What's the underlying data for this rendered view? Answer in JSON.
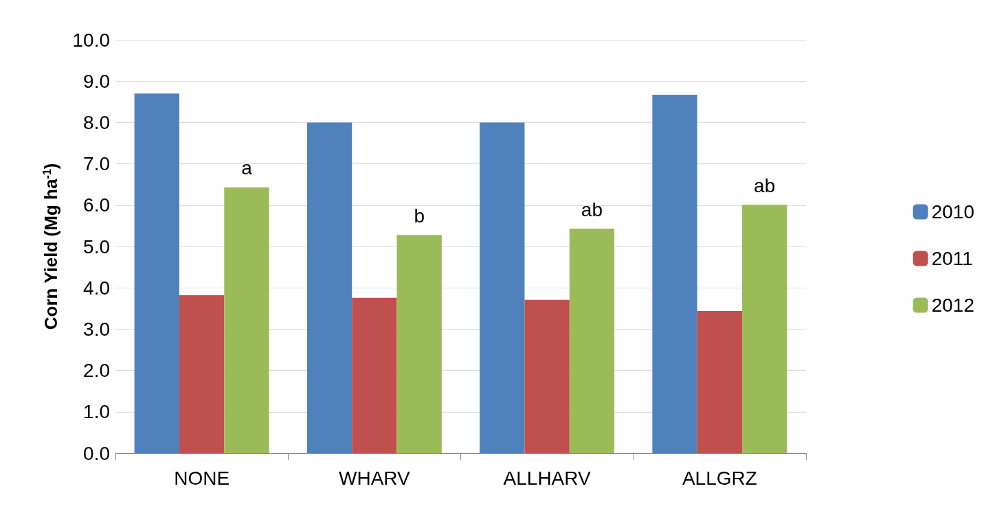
{
  "chart_data": {
    "type": "bar",
    "ylabel": "Corn Yield (Mg ha$^{-1}$)",
    "categories": [
      "NONE",
      "WHARV",
      "ALLHARV",
      "ALLGRZ"
    ],
    "series": [
      {
        "name": "2010",
        "color": "#4f81bd",
        "values": [
          8.7,
          8.0,
          8.0,
          8.67
        ]
      },
      {
        "name": "2011",
        "color": "#c0504d",
        "values": [
          3.82,
          3.76,
          3.71,
          3.44
        ]
      },
      {
        "name": "2012",
        "color": "#9bbb59",
        "values": [
          6.43,
          5.28,
          5.43,
          6.01
        ]
      }
    ],
    "annotations": [
      "a",
      "b",
      "ab",
      "ab"
    ],
    "ylim": [
      0,
      10
    ],
    "yticks": [
      {
        "value": 0,
        "label": "0.0"
      },
      {
        "value": 1,
        "label": "1.0"
      },
      {
        "value": 2,
        "label": "2.0"
      },
      {
        "value": 3,
        "label": "3.0"
      },
      {
        "value": 4,
        "label": "4.0"
      },
      {
        "value": 5,
        "label": "5.0"
      },
      {
        "value": 6,
        "label": "6.0"
      },
      {
        "value": 7,
        "label": "7.0"
      },
      {
        "value": 8,
        "label": "8.0"
      },
      {
        "value": 9,
        "label": "9.0"
      },
      {
        "value": 10,
        "label": "10.0"
      }
    ],
    "grid": "y",
    "legend": "right"
  }
}
